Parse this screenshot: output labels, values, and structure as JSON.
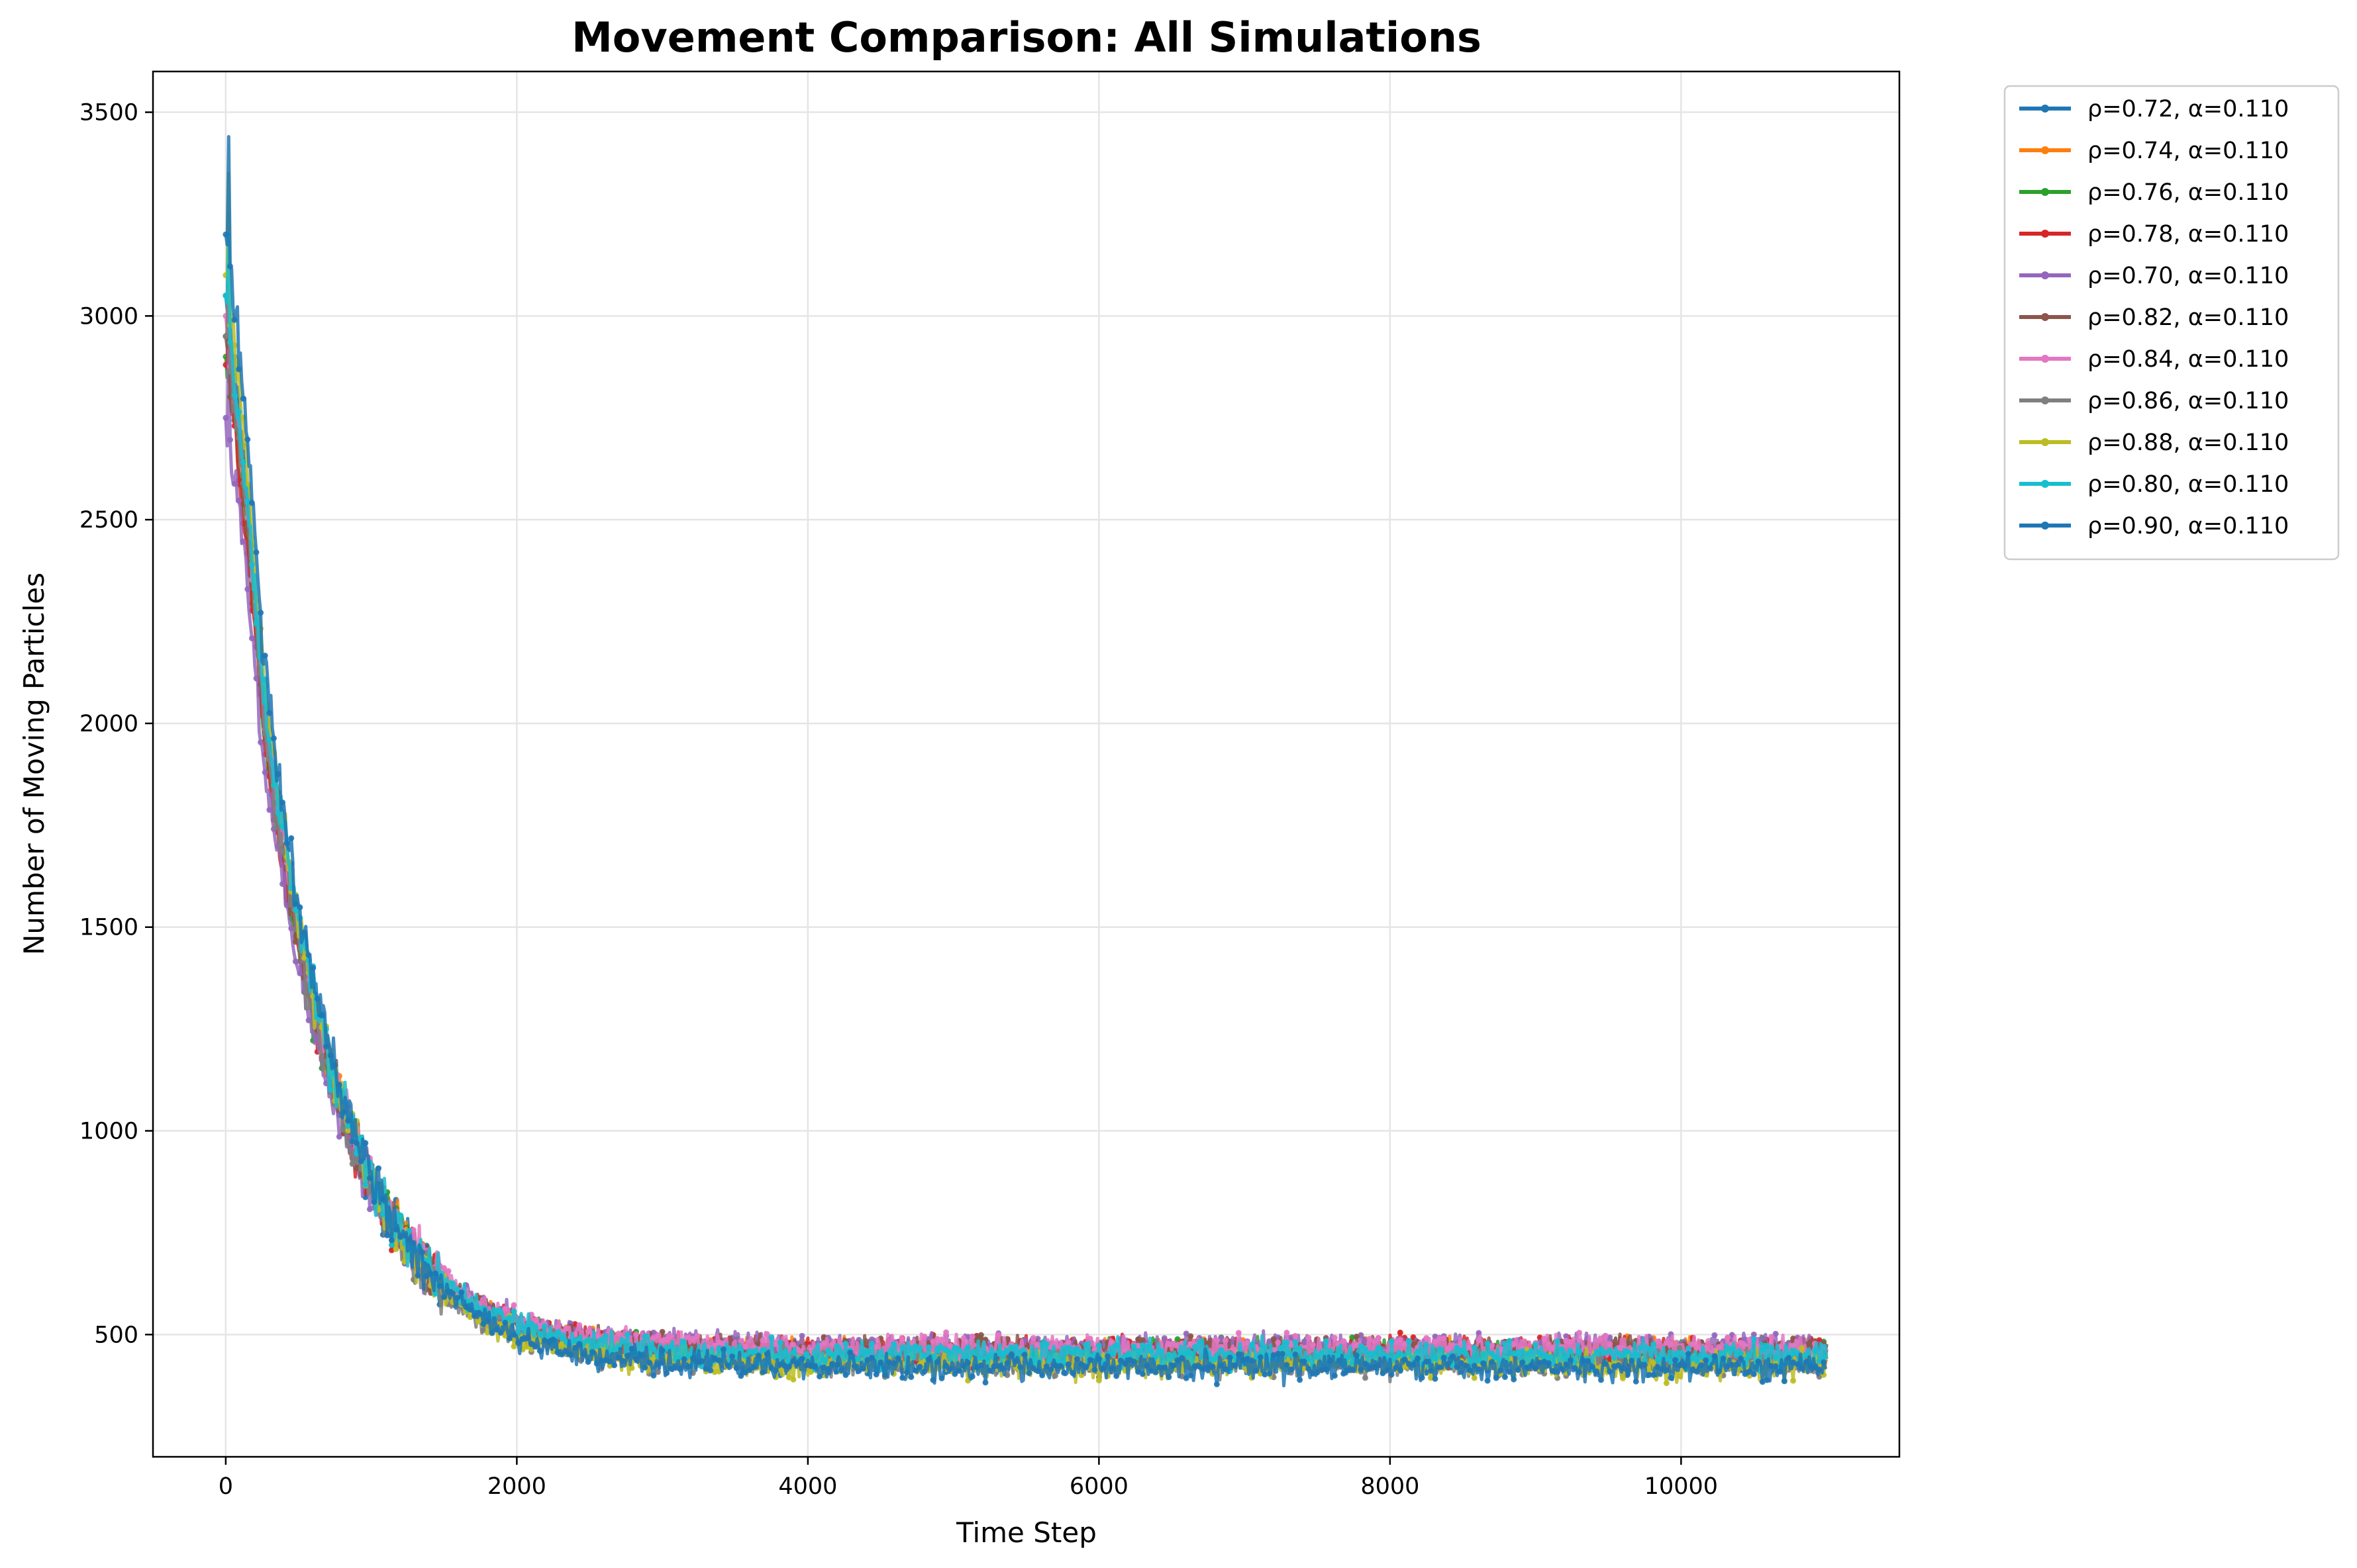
{
  "chart_data": {
    "type": "line",
    "title": "Movement Comparison: All Simulations",
    "xlabel": "Time Step",
    "ylabel": "Number of Moving Particles",
    "xlim": [
      -500,
      11500
    ],
    "ylim": [
      200,
      3600
    ],
    "xticks": [
      0,
      2000,
      4000,
      6000,
      8000,
      10000
    ],
    "yticks": [
      500,
      1000,
      1500,
      2000,
      2500,
      3000,
      3500
    ],
    "grid": true,
    "legend_position": "outside-top-right",
    "markers": "dot",
    "series_shape": "exponential decay from about 3000 at step 0 to a plateau near 450 after about step 2000, with noise of roughly ±40",
    "series": [
      {
        "name": "ρ=0.72, α=0.110",
        "color": "#1f77b4",
        "start": 3050,
        "plateau": 440,
        "peak": 3250
      },
      {
        "name": "ρ=0.74, α=0.110",
        "color": "#ff7f0e",
        "start": 2950,
        "plateau": 455,
        "peak": 3150
      },
      {
        "name": "ρ=0.76, α=0.110",
        "color": "#2ca02c",
        "start": 2900,
        "plateau": 455,
        "peak": 3100
      },
      {
        "name": "ρ=0.78, α=0.110",
        "color": "#d62728",
        "start": 2880,
        "plateau": 460,
        "peak": 3050
      },
      {
        "name": "ρ=0.70, α=0.110",
        "color": "#9467bd",
        "start": 2750,
        "plateau": 470,
        "peak": 2950
      },
      {
        "name": "ρ=0.82, α=0.110",
        "color": "#8c564b",
        "start": 2950,
        "plateau": 460,
        "peak": 3150
      },
      {
        "name": "ρ=0.84, α=0.110",
        "color": "#e377c2",
        "start": 3000,
        "plateau": 465,
        "peak": 3200
      },
      {
        "name": "ρ=0.86, α=0.110",
        "color": "#7f7f7f",
        "start": 2950,
        "plateau": 430,
        "peak": 3200
      },
      {
        "name": "ρ=0.88, α=0.110",
        "color": "#bcbd22",
        "start": 3100,
        "plateau": 425,
        "peak": 3350
      },
      {
        "name": "ρ=0.80, α=0.110",
        "color": "#17becf",
        "start": 3050,
        "plateau": 450,
        "peak": 3200
      },
      {
        "name": "ρ=0.90, α=0.110",
        "color": "#1f77b4",
        "start": 3200,
        "plateau": 420,
        "peak": 3440
      }
    ],
    "x_range": [
      0,
      11000
    ],
    "decay_scale": 560
  }
}
